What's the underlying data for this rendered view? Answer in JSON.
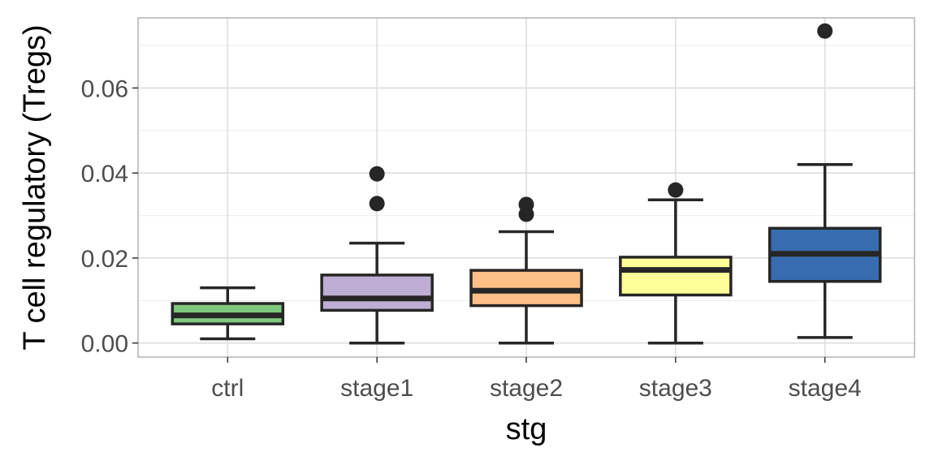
{
  "chart_data": {
    "type": "box",
    "xlabel": "stg",
    "ylabel": "T cell regulatory (Tregs)",
    "categories": [
      "ctrl",
      "stage1",
      "stage2",
      "stage3",
      "stage4"
    ],
    "ylim": [
      -0.0033,
      0.0765
    ],
    "yticks": [
      0.0,
      0.02,
      0.04,
      0.06
    ],
    "ytick_labels": [
      "0.00",
      "0.02",
      "0.04",
      "0.06"
    ],
    "grid": true,
    "legend": "none",
    "boxes": [
      {
        "category": "ctrl",
        "whisker_low": 0.001,
        "q1": 0.0045,
        "median": 0.0065,
        "q3": 0.0093,
        "whisker_high": 0.013,
        "outliers": [],
        "color": "#7fc97f"
      },
      {
        "category": "stage1",
        "whisker_low": 0.0,
        "q1": 0.0077,
        "median": 0.0105,
        "q3": 0.016,
        "whisker_high": 0.0235,
        "outliers": [
          0.0398,
          0.0328
        ],
        "color": "#beaed4"
      },
      {
        "category": "stage2",
        "whisker_low": 0.0,
        "q1": 0.0088,
        "median": 0.0123,
        "q3": 0.0171,
        "whisker_high": 0.0262,
        "outliers": [
          0.0326,
          0.0303
        ],
        "color": "#fdc086"
      },
      {
        "category": "stage3",
        "whisker_low": 0.0,
        "q1": 0.0113,
        "median": 0.0172,
        "q3": 0.0202,
        "whisker_high": 0.0337,
        "outliers": [
          0.036
        ],
        "color": "#ffff99"
      },
      {
        "category": "stage4",
        "whisker_low": 0.0013,
        "q1": 0.0145,
        "median": 0.021,
        "q3": 0.027,
        "whisker_high": 0.042,
        "outliers": [
          0.0734
        ],
        "color": "#386cb0"
      }
    ]
  }
}
